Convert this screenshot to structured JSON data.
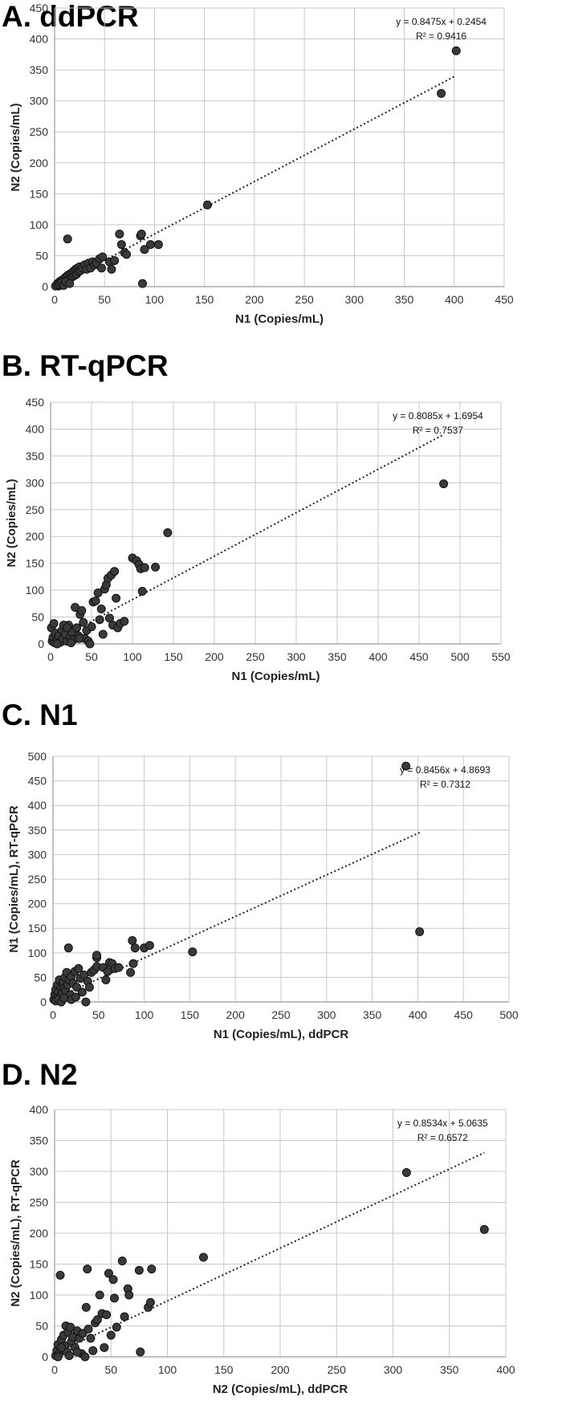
{
  "chart_data": [
    {
      "type": "scatter",
      "panel_title": "A. ddPCR",
      "xlabel": "N1 (Copies/mL)",
      "ylabel": "N2 (Copies/mL)",
      "xlim": [
        0,
        450
      ],
      "xstep": 50,
      "ylim": [
        0,
        450
      ],
      "ystep": 50,
      "grid": true,
      "equation": "y = 0.8475x + 0.2454",
      "r2": "R² = 0.9416",
      "trendline": {
        "slope": 0.8475,
        "intercept": 0.2454,
        "x_range": [
          0,
          402
        ]
      },
      "points": [
        [
          2,
          2
        ],
        [
          3,
          5
        ],
        [
          4,
          1
        ],
        [
          5,
          8
        ],
        [
          6,
          3
        ],
        [
          7,
          10
        ],
        [
          8,
          6
        ],
        [
          9,
          12
        ],
        [
          10,
          4
        ],
        [
          11,
          15
        ],
        [
          12,
          9
        ],
        [
          13,
          18
        ],
        [
          14,
          12
        ],
        [
          15,
          20
        ],
        [
          16,
          14
        ],
        [
          17,
          22
        ],
        [
          18,
          16
        ],
        [
          19,
          25
        ],
        [
          20,
          18
        ],
        [
          21,
          28
        ],
        [
          22,
          20
        ],
        [
          23,
          30
        ],
        [
          24,
          24
        ],
        [
          25,
          32
        ],
        [
          26,
          26
        ],
        [
          28,
          30
        ],
        [
          30,
          35
        ],
        [
          32,
          28
        ],
        [
          34,
          38
        ],
        [
          36,
          30
        ],
        [
          38,
          40
        ],
        [
          40,
          35
        ],
        [
          42,
          38
        ],
        [
          45,
          45
        ],
        [
          47,
          30
        ],
        [
          48,
          48
        ],
        [
          55,
          40
        ],
        [
          57,
          28
        ],
        [
          60,
          42
        ],
        [
          65,
          85
        ],
        [
          67,
          68
        ],
        [
          70,
          55
        ],
        [
          72,
          52
        ],
        [
          13,
          77
        ],
        [
          86,
          82
        ],
        [
          87,
          85
        ],
        [
          88,
          5
        ],
        [
          90,
          60
        ],
        [
          96,
          68
        ],
        [
          104,
          68
        ],
        [
          153,
          132
        ],
        [
          387,
          312
        ],
        [
          402,
          381
        ],
        [
          1,
          1
        ],
        [
          3,
          3
        ],
        [
          5,
          4
        ],
        [
          7,
          7
        ],
        [
          9,
          2
        ],
        [
          11,
          8
        ],
        [
          15,
          5
        ]
      ]
    },
    {
      "type": "scatter",
      "panel_title": "B. RT-qPCR",
      "xlabel": "N1 (Copies/mL)",
      "ylabel": "N2 (Copies/mL)",
      "xlim": [
        0,
        550
      ],
      "xstep": 50,
      "ylim": [
        0,
        450
      ],
      "ystep": 50,
      "grid": true,
      "equation": "y = 0.8085x + 1.6954",
      "r2": "R² = 0.7537",
      "trendline": {
        "slope": 0.8085,
        "intercept": 1.6954,
        "x_range": [
          0,
          480
        ]
      },
      "points": [
        [
          1,
          30
        ],
        [
          2,
          5
        ],
        [
          3,
          12
        ],
        [
          5,
          2
        ],
        [
          6,
          20
        ],
        [
          8,
          8
        ],
        [
          10,
          15
        ],
        [
          12,
          3
        ],
        [
          14,
          25
        ],
        [
          15,
          10
        ],
        [
          18,
          18
        ],
        [
          20,
          5
        ],
        [
          22,
          35
        ],
        [
          24,
          12
        ],
        [
          26,
          22
        ],
        [
          28,
          8
        ],
        [
          30,
          68
        ],
        [
          32,
          30
        ],
        [
          34,
          15
        ],
        [
          36,
          55
        ],
        [
          38,
          62
        ],
        [
          40,
          40
        ],
        [
          42,
          10
        ],
        [
          44,
          25
        ],
        [
          46,
          5
        ],
        [
          48,
          0
        ],
        [
          50,
          32
        ],
        [
          52,
          78
        ],
        [
          55,
          80
        ],
        [
          58,
          95
        ],
        [
          60,
          45
        ],
        [
          62,
          65
        ],
        [
          64,
          18
        ],
        [
          66,
          102
        ],
        [
          68,
          110
        ],
        [
          70,
          122
        ],
        [
          72,
          48
        ],
        [
          74,
          128
        ],
        [
          76,
          35
        ],
        [
          78,
          135
        ],
        [
          80,
          85
        ],
        [
          82,
          30
        ],
        [
          85,
          38
        ],
        [
          90,
          42
        ],
        [
          100,
          160
        ],
        [
          105,
          155
        ],
        [
          108,
          148
        ],
        [
          110,
          140
        ],
        [
          112,
          98
        ],
        [
          115,
          142
        ],
        [
          128,
          143
        ],
        [
          143,
          207
        ],
        [
          480,
          298
        ],
        [
          4,
          38
        ],
        [
          8,
          0
        ],
        [
          16,
          35
        ],
        [
          20,
          30
        ],
        [
          25,
          2
        ],
        [
          35,
          10
        ]
      ]
    },
    {
      "type": "scatter",
      "panel_title": "C. N1",
      "xlabel": "N1 (Copies/mL), ddPCR",
      "ylabel": "N1 (Copies/mL), RT-qPCR",
      "xlim": [
        0,
        500
      ],
      "xstep": 50,
      "ylim": [
        0,
        500
      ],
      "ystep": 50,
      "grid": true,
      "equation": "y = 0.8456x + 4.8693",
      "r2": "R² = 0.7312",
      "trendline": {
        "slope": 0.8456,
        "intercept": 4.8693,
        "x_range": [
          0,
          402
        ]
      },
      "points": [
        [
          1,
          5
        ],
        [
          2,
          15
        ],
        [
          3,
          25
        ],
        [
          4,
          8
        ],
        [
          5,
          35
        ],
        [
          6,
          20
        ],
        [
          7,
          45
        ],
        [
          8,
          12
        ],
        [
          9,
          30
        ],
        [
          10,
          18
        ],
        [
          11,
          40
        ],
        [
          12,
          28
        ],
        [
          13,
          50
        ],
        [
          14,
          22
        ],
        [
          15,
          60
        ],
        [
          16,
          35
        ],
        [
          17,
          110
        ],
        [
          18,
          45
        ],
        [
          19,
          15
        ],
        [
          20,
          52
        ],
        [
          22,
          38
        ],
        [
          24,
          62
        ],
        [
          26,
          30
        ],
        [
          28,
          68
        ],
        [
          30,
          48
        ],
        [
          32,
          20
        ],
        [
          34,
          55
        ],
        [
          36,
          0
        ],
        [
          38,
          42
        ],
        [
          40,
          30
        ],
        [
          42,
          60
        ],
        [
          45,
          65
        ],
        [
          48,
          72
        ],
        [
          48,
          90
        ],
        [
          48,
          95
        ],
        [
          55,
          70
        ],
        [
          58,
          45
        ],
        [
          60,
          62
        ],
        [
          62,
          80
        ],
        [
          65,
          78
        ],
        [
          68,
          68
        ],
        [
          72,
          70
        ],
        [
          85,
          60
        ],
        [
          87,
          125
        ],
        [
          88,
          78
        ],
        [
          90,
          110
        ],
        [
          100,
          110
        ],
        [
          106,
          115
        ],
        [
          153,
          102
        ],
        [
          387,
          480
        ],
        [
          402,
          143
        ],
        [
          3,
          2
        ],
        [
          6,
          5
        ],
        [
          9,
          0
        ],
        [
          12,
          8
        ],
        [
          20,
          5
        ],
        [
          25,
          10
        ]
      ]
    },
    {
      "type": "scatter",
      "panel_title": "D. N2",
      "xlabel": "N2 (Copies/mL), ddPCR",
      "ylabel": "N2 (Copies/mL), RT-qPCR",
      "xlim": [
        0,
        400
      ],
      "xstep": 50,
      "ylim": [
        0,
        400
      ],
      "ystep": 50,
      "grid": true,
      "equation": "y = 0.8534x + 5.0635",
      "r2": "R² = 0.6572",
      "trendline": {
        "slope": 0.8534,
        "intercept": 5.0635,
        "x_range": [
          0,
          381
        ]
      },
      "points": [
        [
          1,
          2
        ],
        [
          2,
          10
        ],
        [
          3,
          20
        ],
        [
          4,
          5
        ],
        [
          5,
          132
        ],
        [
          6,
          28
        ],
        [
          7,
          12
        ],
        [
          8,
          35
        ],
        [
          9,
          18
        ],
        [
          10,
          50
        ],
        [
          11,
          8
        ],
        [
          12,
          40
        ],
        [
          14,
          48
        ],
        [
          15,
          25
        ],
        [
          16,
          32
        ],
        [
          18,
          15
        ],
        [
          20,
          42
        ],
        [
          22,
          30
        ],
        [
          24,
          5
        ],
        [
          25,
          38
        ],
        [
          28,
          80
        ],
        [
          29,
          142
        ],
        [
          30,
          45
        ],
        [
          32,
          30
        ],
        [
          34,
          10
        ],
        [
          36,
          55
        ],
        [
          38,
          60
        ],
        [
          40,
          100
        ],
        [
          42,
          70
        ],
        [
          44,
          15
        ],
        [
          46,
          68
        ],
        [
          48,
          135
        ],
        [
          50,
          35
        ],
        [
          52,
          125
        ],
        [
          53,
          95
        ],
        [
          55,
          48
        ],
        [
          60,
          155
        ],
        [
          62,
          65
        ],
        [
          65,
          110
        ],
        [
          66,
          100
        ],
        [
          75,
          140
        ],
        [
          76,
          8
        ],
        [
          83,
          80
        ],
        [
          85,
          88
        ],
        [
          86,
          142
        ],
        [
          132,
          161
        ],
        [
          312,
          298
        ],
        [
          381,
          206
        ],
        [
          3,
          0
        ],
        [
          6,
          15
        ],
        [
          13,
          2
        ],
        [
          20,
          8
        ],
        [
          27,
          0
        ]
      ]
    }
  ]
}
